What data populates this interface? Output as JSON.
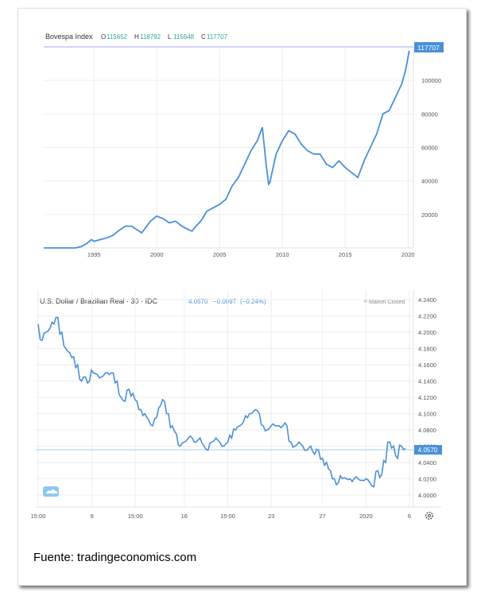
{
  "colors": {
    "line": "#4a90d9",
    "grid": "#eeeeee",
    "axis_text": "#555555",
    "accent": "#4a90d9",
    "up": "#26a69a",
    "marker": "#8c8cf0"
  },
  "chart_data": [
    {
      "type": "line",
      "title": "Bovespa Index",
      "ohlc": [
        {
          "key": "O",
          "value": "115652"
        },
        {
          "key": "H",
          "value": "118792"
        },
        {
          "key": "L",
          "value": "115648"
        },
        {
          "key": "C",
          "value": "117707"
        }
      ],
      "last_label": "117707",
      "x_ticks": [
        1995,
        2000,
        2005,
        2010,
        2015,
        2020
      ],
      "y_ticks": [
        {
          "v": 20000,
          "label": "20000"
        },
        {
          "v": 40000,
          "label": "40000"
        },
        {
          "v": 60000,
          "label": "60000"
        },
        {
          "v": 80000,
          "label": "80000"
        },
        {
          "v": 100000,
          "label": "100000"
        }
      ],
      "xlim": [
        1991,
        2020.3
      ],
      "ylim": [
        0,
        120000
      ],
      "series": [
        {
          "x": [
            1991,
            1992,
            1993,
            1993.5,
            1994,
            1994.4,
            1994.8,
            1995,
            1995.5,
            1996,
            1996.5,
            1997,
            1997.5,
            1998,
            1998.5,
            1998.8,
            1999,
            1999.5,
            2000,
            2000.5,
            2001,
            2001.5,
            2002,
            2002.5,
            2002.8,
            2003,
            2003.5,
            2004,
            2004.5,
            2005,
            2005.5,
            2006,
            2006.5,
            2007,
            2007.5,
            2008,
            2008.4,
            2008.7,
            2008.9,
            2009,
            2009.5,
            2010,
            2010.5,
            2011,
            2011.5,
            2012,
            2012.5,
            2013,
            2013.5,
            2014,
            2014.5,
            2015,
            2015.5,
            2016,
            2016.5,
            2017,
            2017.5,
            2018,
            2018.5,
            2019,
            2019.5,
            2019.8,
            2020.1
          ],
          "values": [
            0,
            0,
            0,
            0,
            800,
            2500,
            5000,
            4000,
            5000,
            6000,
            7500,
            10500,
            13000,
            13000,
            10500,
            9000,
            11000,
            16000,
            19000,
            17500,
            15000,
            16000,
            13000,
            11000,
            10000,
            12000,
            16000,
            22000,
            24000,
            26000,
            29000,
            37000,
            42000,
            50000,
            58000,
            64000,
            72000,
            50000,
            38000,
            39000,
            56000,
            64000,
            70000,
            68000,
            62000,
            58000,
            56000,
            56000,
            50000,
            48000,
            52000,
            48000,
            45000,
            42000,
            52000,
            60000,
            68000,
            80000,
            82000,
            90000,
            98000,
            106000,
            117707
          ]
        }
      ]
    },
    {
      "type": "line",
      "title": "U.S. Dollar / Brazilian Real · 30 · IDC",
      "last_value": "4.0570",
      "change": "−0.0097",
      "change_pct": "(−0.24%)",
      "status": "Market Closed",
      "last_label": "4.0570",
      "x_ticks": [
        {
          "x": 0,
          "label": "15:00"
        },
        {
          "x": 68,
          "label": "9"
        },
        {
          "x": 123,
          "label": "15:00"
        },
        {
          "x": 185,
          "label": "16"
        },
        {
          "x": 240,
          "label": "15:00"
        },
        {
          "x": 295,
          "label": "23"
        },
        {
          "x": 360,
          "label": "27"
        },
        {
          "x": 415,
          "label": "2020"
        },
        {
          "x": 470,
          "label": "6"
        }
      ],
      "y_ticks": [
        {
          "v": 4.0,
          "label": "4.0000"
        },
        {
          "v": 4.02,
          "label": "4.0200"
        },
        {
          "v": 4.04,
          "label": "4.0400"
        },
        {
          "v": 4.06,
          "label": "4.0600"
        },
        {
          "v": 4.08,
          "label": "4.0800"
        },
        {
          "v": 4.1,
          "label": "4.1000"
        },
        {
          "v": 4.12,
          "label": "4.1200"
        },
        {
          "v": 4.14,
          "label": "4.1400"
        },
        {
          "v": 4.16,
          "label": "4.1600"
        },
        {
          "v": 4.18,
          "label": "4.1800"
        },
        {
          "v": 4.2,
          "label": "4.2000"
        },
        {
          "v": 4.22,
          "label": "4.2200"
        },
        {
          "v": 4.24,
          "label": "4.2400"
        }
      ],
      "xlim": [
        0,
        470
      ],
      "ylim": [
        3.995,
        4.245
      ],
      "series": [
        {
          "x": [
            0,
            5,
            10,
            15,
            20,
            25,
            30,
            35,
            40,
            45,
            50,
            55,
            60,
            65,
            70,
            75,
            80,
            85,
            90,
            95,
            100,
            105,
            110,
            115,
            120,
            125,
            130,
            135,
            140,
            145,
            150,
            155,
            160,
            165,
            170,
            175,
            180,
            185,
            190,
            195,
            200,
            205,
            210,
            215,
            220,
            225,
            230,
            235,
            240,
            245,
            250,
            255,
            260,
            265,
            270,
            275,
            280,
            285,
            290,
            295,
            300,
            305,
            310,
            315,
            320,
            325,
            330,
            335,
            340,
            345,
            350,
            355,
            360,
            365,
            370,
            375,
            380,
            385,
            390,
            395,
            400,
            405,
            410,
            415,
            420,
            425,
            430,
            435,
            440,
            445,
            450,
            455,
            460,
            465
          ],
          "values": [
            4.21,
            4.19,
            4.2,
            4.205,
            4.21,
            4.218,
            4.2,
            4.18,
            4.175,
            4.17,
            4.16,
            4.14,
            4.145,
            4.14,
            4.15,
            4.148,
            4.145,
            4.15,
            4.148,
            4.15,
            4.14,
            4.12,
            4.115,
            4.13,
            4.125,
            4.115,
            4.105,
            4.1,
            4.092,
            4.085,
            4.095,
            4.11,
            4.115,
            4.1,
            4.085,
            4.075,
            4.06,
            4.065,
            4.07,
            4.07,
            4.065,
            4.07,
            4.06,
            4.055,
            4.065,
            4.07,
            4.065,
            4.06,
            4.065,
            4.07,
            4.08,
            4.085,
            4.09,
            4.095,
            4.1,
            4.105,
            4.1,
            4.085,
            4.08,
            4.085,
            4.085,
            4.085,
            4.085,
            4.085,
            4.065,
            4.06,
            4.065,
            4.06,
            4.055,
            4.06,
            4.05,
            4.055,
            4.045,
            4.04,
            4.03,
            4.02,
            4.015,
            4.02,
            4.02,
            4.02,
            4.02,
            4.02,
            4.018,
            4.02,
            4.015,
            4.01,
            4.03,
            4.025,
            4.04,
            4.065,
            4.06,
            4.045,
            4.06,
            4.057
          ]
        }
      ]
    }
  ],
  "source": "Fuente: tradingeconomics.com"
}
